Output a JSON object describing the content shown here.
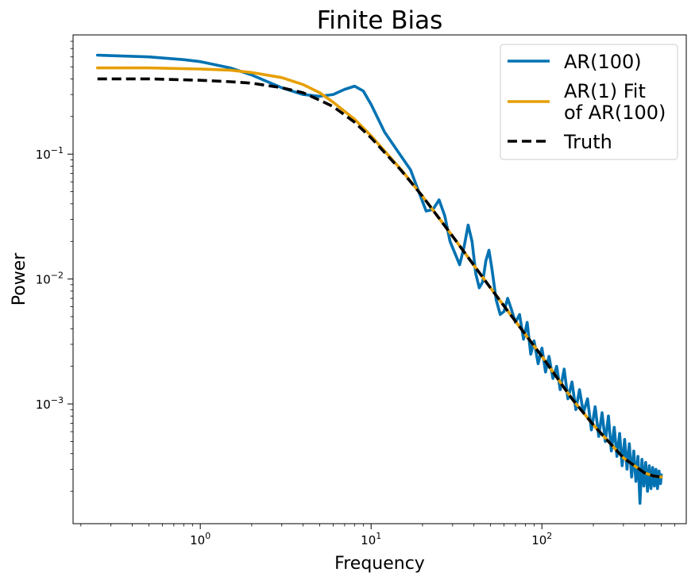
{
  "chart_data": {
    "type": "line",
    "title": "Finite Bias",
    "xlabel": "Frequency",
    "ylabel": "Power",
    "xscale": "log",
    "yscale": "log",
    "xlim": [
      0.18,
      700
    ],
    "ylim": [
      0.00011,
      0.9
    ],
    "grid": false,
    "legend_position": "top-right",
    "x_ticks": [
      {
        "value": 1,
        "base": "10",
        "exp": "0"
      },
      {
        "value": 10,
        "base": "10",
        "exp": "1"
      },
      {
        "value": 100,
        "base": "10",
        "exp": "2"
      }
    ],
    "y_ticks": [
      {
        "value": 0.001,
        "base": "10",
        "exp": "−3"
      },
      {
        "value": 0.01,
        "base": "10",
        "exp": "−2"
      },
      {
        "value": 0.1,
        "base": "10",
        "exp": "−1"
      }
    ],
    "series": [
      {
        "name": "AR(100)",
        "color": "#0072B2",
        "style": "solid",
        "x": [
          0.25,
          0.5,
          0.8,
          1.0,
          1.5,
          2.0,
          3.0,
          4.0,
          5.0,
          6.0,
          7.0,
          8.0,
          9.0,
          10.0,
          12.0,
          15.0,
          17.0,
          19.0,
          21.0,
          23.0,
          25.0,
          27.0,
          29.0,
          31.0,
          33.0,
          35.0,
          37.0,
          39.0,
          41.0,
          43.0,
          45.0,
          47.0,
          49.0,
          51.0,
          54.0,
          57.0,
          60.0,
          63.0,
          66.0,
          70.0,
          74.0,
          78.0,
          82.0,
          86.0,
          90.0,
          95.0,
          100.0,
          105.0,
          110.0,
          116.0,
          122.0,
          128.0,
          135.0,
          142.0,
          150.0,
          158.0,
          166.0,
          175.0,
          185.0,
          195.0,
          205.0,
          215.0,
          225.0,
          235.0,
          245.0,
          255.0,
          265.0,
          275.0,
          285.0,
          295.0,
          305.0,
          315.0,
          325.0,
          335.0,
          345.0,
          355.0,
          365.0,
          375.0,
          385.0,
          395.0,
          405.0,
          415.0,
          425.0,
          435.0,
          445.0,
          455.0,
          465.0,
          475.0,
          485.0,
          495.0,
          500.0
        ],
        "y": [
          0.62,
          0.6,
          0.57,
          0.55,
          0.49,
          0.43,
          0.34,
          0.3,
          0.29,
          0.3,
          0.33,
          0.35,
          0.32,
          0.25,
          0.15,
          0.096,
          0.075,
          0.05,
          0.035,
          0.036,
          0.043,
          0.032,
          0.02,
          0.016,
          0.013,
          0.018,
          0.027,
          0.02,
          0.011,
          0.0085,
          0.0095,
          0.014,
          0.017,
          0.012,
          0.0068,
          0.0052,
          0.0055,
          0.007,
          0.0058,
          0.0045,
          0.0052,
          0.0033,
          0.0045,
          0.0025,
          0.0032,
          0.0021,
          0.0028,
          0.0018,
          0.0024,
          0.0016,
          0.002,
          0.0013,
          0.0019,
          0.0011,
          0.0015,
          0.0009,
          0.0013,
          0.00085,
          0.0011,
          0.00062,
          0.00095,
          0.00055,
          0.00085,
          0.0005,
          0.0008,
          0.00042,
          0.00065,
          0.00038,
          0.00058,
          0.00032,
          0.00052,
          0.0003,
          0.00048,
          0.00026,
          0.00042,
          0.00024,
          0.00038,
          0.00016,
          0.00036,
          0.00022,
          0.00034,
          0.0002,
          0.00032,
          0.00021,
          0.00031,
          0.00022,
          0.0003,
          0.00021,
          0.00029,
          0.00023,
          0.00027
        ]
      },
      {
        "name": "AR(1) Fit\nof AR(100)",
        "color": "#E69F00",
        "style": "solid",
        "x": [
          0.25,
          0.5,
          1.0,
          1.5,
          2.0,
          3.0,
          4.0,
          5.0,
          6.0,
          8.0,
          10.0,
          15.0,
          20.0,
          30.0,
          50.0,
          80.0,
          100.0,
          150.0,
          200.0,
          300.0,
          400.0,
          450.0,
          500.0
        ],
        "y": [
          0.49,
          0.49,
          0.48,
          0.47,
          0.45,
          0.41,
          0.36,
          0.31,
          0.26,
          0.19,
          0.14,
          0.075,
          0.046,
          0.022,
          0.0085,
          0.0036,
          0.0024,
          0.0011,
          0.00068,
          0.00037,
          0.00028,
          0.000265,
          0.00026
        ]
      },
      {
        "name": "Truth",
        "color": "#000000",
        "style": "dashed",
        "x": [
          0.25,
          0.5,
          1.0,
          1.5,
          2.0,
          3.0,
          4.0,
          5.0,
          6.0,
          8.0,
          10.0,
          15.0,
          20.0,
          30.0,
          50.0,
          80.0,
          100.0,
          150.0,
          200.0,
          300.0,
          400.0,
          450.0,
          500.0
        ],
        "y": [
          0.4,
          0.4,
          0.39,
          0.38,
          0.37,
          0.34,
          0.31,
          0.27,
          0.24,
          0.18,
          0.135,
          0.074,
          0.046,
          0.022,
          0.0085,
          0.0036,
          0.0024,
          0.0011,
          0.00068,
          0.00037,
          0.00028,
          0.000265,
          0.00026
        ]
      }
    ]
  }
}
